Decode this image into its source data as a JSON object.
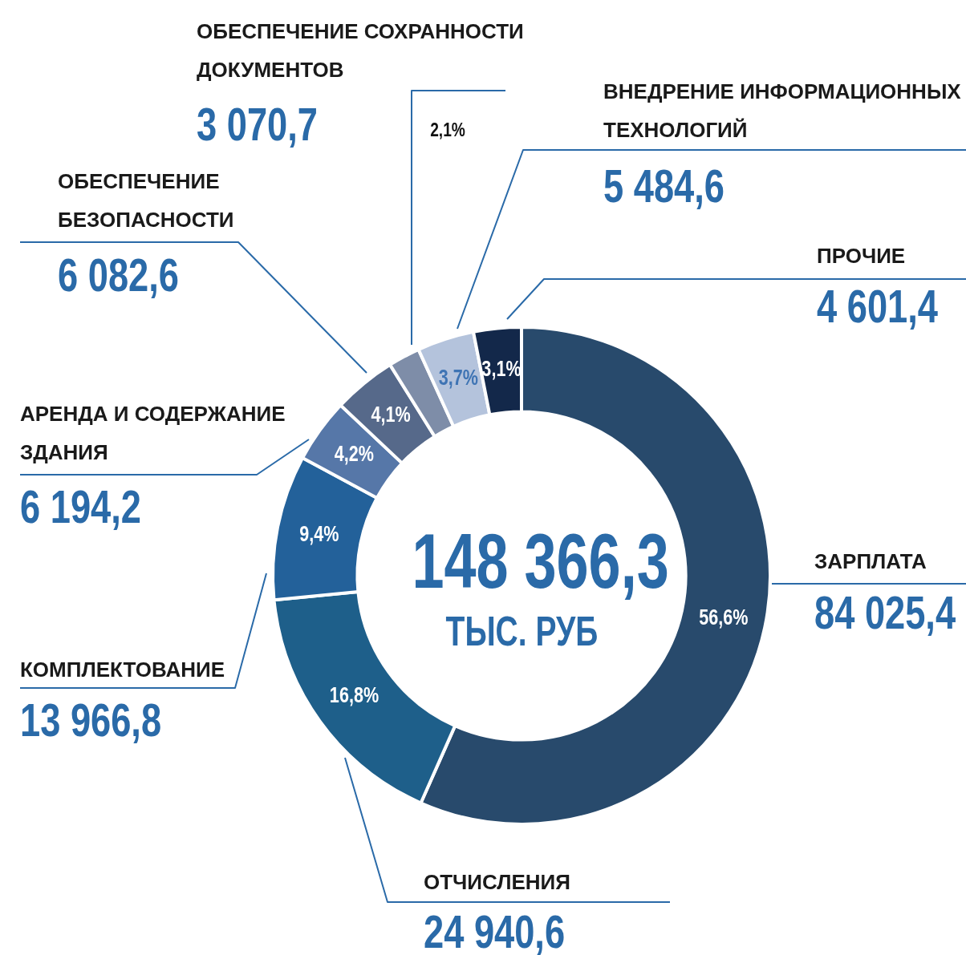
{
  "chart_data": {
    "type": "donut",
    "categories": [
      "ЗАРПЛАТА",
      "ОТЧИСЛЕНИЯ",
      "КОМПЛЕКТОВАНИЕ",
      "АРЕНДА И СОДЕРЖАНИЕ ЗДАНИЯ",
      "ОБЕСПЕЧЕНИЕ БЕЗОПАСНОСТИ",
      "ОБЕСПЕЧЕНИЕ СОХРАННОСТИ ДОКУМЕНТОВ",
      "ВНЕДРЕНИЕ ИНФОРМАЦИОННЫХ ТЕХНОЛОГИЙ",
      "ПРОЧИЕ"
    ],
    "values": [
      84025.4,
      24940.6,
      13966.8,
      6194.2,
      6082.6,
      3070.7,
      5484.6,
      4601.4
    ],
    "colors": [
      "#284a6c",
      "#1e5f8a",
      "#23619a",
      "#5677a8",
      "#56698a",
      "#7e8da8",
      "#b4c3dc",
      "#13284a"
    ],
    "value_labels": [
      "84 025,4",
      "24 940,6",
      "13 966,8",
      "6 194,2",
      "6 082,6",
      "3 070,7",
      "5 484,6",
      "4 601,4"
    ],
    "annotations": [
      "148 366,3",
      "ТЫС. РУБ",
      {
        "text": "56,6%",
        "x": "ЗАРПЛАТА"
      },
      {
        "text": "16,8%",
        "x": "ОТЧИСЛЕНИЯ"
      },
      {
        "text": "9,4%",
        "x": "КОМПЛЕКТОВАНИЕ"
      },
      {
        "text": "4,2%",
        "x": "АРЕНДА И СОДЕРЖАНИЕ ЗДАНИЯ"
      },
      {
        "text": "4,1%",
        "x": "ОБЕСПЕЧЕНИЕ БЕЗОПАСНОСТИ"
      },
      {
        "text": "2,1%",
        "x": "ОБЕСПЕЧЕНИЕ СОХРАННОСТИ ДОКУМЕНТОВ"
      },
      {
        "text": "3,7%",
        "x": "ВНЕДРЕНИЕ ИНФОРМАЦИОННЫХ ТЕХНОЛОГИЙ"
      },
      {
        "text": "3,1%",
        "x": "ПРОЧИЕ"
      }
    ]
  }
}
